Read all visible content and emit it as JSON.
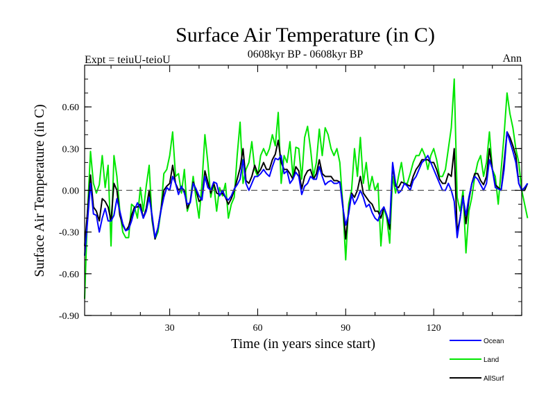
{
  "chart_data": {
    "type": "line",
    "title": "Surface Air Temperature (in C)",
    "subtitle": "0608kyr BP - 0608kyr BP",
    "left_label": "Expt = teiuU-teioU",
    "right_label": "Ann",
    "xlabel": "Time (in years since start)",
    "ylabel": "Surface Air Temperature (in C)",
    "xlim": [
      1,
      150
    ],
    "ylim": [
      -0.9,
      0.9
    ],
    "x_ticks": [
      30,
      60,
      90,
      120
    ],
    "y_ticks": [
      -0.9,
      -0.6,
      -0.3,
      0.0,
      0.3,
      0.6
    ],
    "y_tick_labels": [
      "-0.90",
      "-0.60",
      "-0.30",
      "0.00",
      "0.30",
      "0.60"
    ],
    "zero_line": 0.0,
    "legend_position": "bottom-right",
    "series": [
      {
        "name": "Ocean",
        "color": "#0000ff",
        "values": [
          -0.47,
          -0.22,
          0.05,
          -0.17,
          -0.18,
          -0.3,
          -0.2,
          -0.13,
          -0.22,
          -0.22,
          -0.18,
          -0.06,
          -0.15,
          -0.24,
          -0.29,
          -0.28,
          -0.22,
          -0.14,
          -0.09,
          -0.13,
          -0.2,
          -0.15,
          -0.05,
          -0.18,
          -0.34,
          -0.27,
          -0.15,
          -0.05,
          0.02,
          0.0,
          0.1,
          0.05,
          -0.03,
          0.03,
          -0.02,
          -0.1,
          -0.09,
          0.05,
          0.01,
          -0.04,
          -0.07,
          0.1,
          0.02,
          0.0,
          0.06,
          0.05,
          -0.04,
          0.0,
          -0.05,
          -0.07,
          -0.04,
          0.01,
          0.04,
          0.08,
          0.22,
          0.05,
          0.0,
          0.05,
          0.1,
          0.1,
          0.12,
          0.15,
          0.12,
          0.1,
          0.17,
          0.23,
          0.22,
          0.25,
          0.12,
          0.14,
          0.05,
          0.08,
          0.13,
          0.1,
          -0.03,
          0.03,
          0.05,
          0.1,
          0.08,
          0.08,
          0.17,
          0.1,
          0.04,
          0.06,
          0.07,
          0.05,
          0.05,
          0.06,
          -0.12,
          -0.25,
          -0.17,
          -0.03,
          -0.1,
          -0.06,
          0.0,
          -0.05,
          -0.12,
          -0.1,
          -0.16,
          -0.2,
          -0.22,
          -0.15,
          -0.12,
          -0.18,
          -0.24,
          0.2,
          0.05,
          -0.02,
          0.0,
          0.05,
          0.03,
          0.0,
          0.07,
          0.1,
          0.15,
          0.2,
          0.22,
          0.25,
          0.2,
          0.15,
          0.1,
          0.05,
          0.0,
          0.0,
          0.05,
          0.0,
          -0.08,
          -0.34,
          -0.2,
          -0.05,
          -0.18,
          -0.05,
          0.05,
          0.1,
          0.08,
          0.04,
          0.0,
          0.05,
          0.22,
          0.15,
          0.02,
          0.01,
          0.0,
          0.15,
          0.42,
          0.35,
          0.28,
          0.2,
          0.05,
          0.0,
          0.02,
          0.05
        ]
      },
      {
        "name": "Land",
        "color": "#00e600",
        "values": [
          -0.78,
          -0.15,
          0.28,
          0.05,
          -0.02,
          0.04,
          0.25,
          0.02,
          0.18,
          -0.4,
          0.25,
          0.1,
          -0.15,
          -0.3,
          -0.34,
          -0.34,
          -0.1,
          -0.12,
          -0.2,
          0.02,
          -0.15,
          0.03,
          0.18,
          -0.22,
          -0.35,
          -0.3,
          -0.15,
          0.12,
          0.15,
          0.25,
          0.42,
          0.1,
          0.12,
          -0.02,
          0.15,
          -0.15,
          -0.08,
          0.1,
          -0.06,
          -0.2,
          0.05,
          0.4,
          0.2,
          -0.05,
          0.05,
          -0.15,
          0.02,
          -0.04,
          0.05,
          -0.2,
          -0.1,
          -0.05,
          0.25,
          0.49,
          0.05,
          0.15,
          0.2,
          0.35,
          0.15,
          0.1,
          0.25,
          0.3,
          0.25,
          0.3,
          0.4,
          0.32,
          0.56,
          0.05,
          0.25,
          0.2,
          0.35,
          0.1,
          0.31,
          0.3,
          0.08,
          0.38,
          0.46,
          0.3,
          0.1,
          0.2,
          0.44,
          0.25,
          0.45,
          0.4,
          0.3,
          0.25,
          0.3,
          0.2,
          -0.1,
          -0.5,
          -0.1,
          0.0,
          0.3,
          0.1,
          0.38,
          0.05,
          0.2,
          0.0,
          0.1,
          0.0,
          0.05,
          -0.4,
          -0.12,
          -0.2,
          -0.38,
          0.1,
          -0.02,
          0.1,
          0.2,
          0.05,
          0.05,
          0.12,
          0.2,
          0.25,
          0.25,
          0.3,
          0.25,
          0.15,
          0.25,
          0.3,
          0.22,
          0.1,
          0.1,
          0.15,
          0.3,
          0.45,
          0.8,
          -0.05,
          -0.15,
          0.0,
          -0.45,
          -0.15,
          -0.05,
          0.1,
          0.2,
          0.25,
          0.1,
          0.2,
          0.42,
          0.15,
          0.1,
          -0.1,
          0.15,
          0.4,
          0.7,
          0.55,
          0.45,
          0.3,
          0.2,
          0.0,
          -0.1,
          -0.2
        ]
      },
      {
        "name": "AllSurf",
        "color": "#000000",
        "values": [
          -0.4,
          -0.15,
          0.11,
          -0.12,
          -0.15,
          -0.22,
          -0.06,
          -0.08,
          -0.12,
          -0.22,
          0.05,
          0.0,
          -0.18,
          -0.25,
          -0.29,
          -0.26,
          -0.18,
          -0.12,
          -0.12,
          -0.1,
          -0.2,
          -0.13,
          0.0,
          -0.2,
          -0.35,
          -0.27,
          -0.14,
          0.0,
          0.03,
          0.05,
          0.18,
          0.05,
          0.0,
          0.02,
          0.0,
          -0.13,
          -0.08,
          0.06,
          0.0,
          -0.08,
          -0.06,
          0.14,
          0.06,
          -0.02,
          0.05,
          -0.02,
          -0.03,
          -0.02,
          -0.05,
          -0.1,
          -0.06,
          0.0,
          0.08,
          0.16,
          0.3,
          0.07,
          0.05,
          0.1,
          0.18,
          0.12,
          0.15,
          0.2,
          0.15,
          0.15,
          0.22,
          0.26,
          0.36,
          0.2,
          0.15,
          0.15,
          0.12,
          0.08,
          0.17,
          0.14,
          0.01,
          0.1,
          0.14,
          0.15,
          0.08,
          0.12,
          0.22,
          0.12,
          0.1,
          0.1,
          0.1,
          0.07,
          0.07,
          0.06,
          -0.1,
          -0.35,
          -0.15,
          -0.02,
          -0.05,
          0.0,
          0.1,
          -0.02,
          -0.05,
          -0.08,
          -0.1,
          -0.15,
          -0.15,
          -0.2,
          -0.12,
          -0.18,
          -0.28,
          0.18,
          0.03,
          0.02,
          0.06,
          0.05,
          0.04,
          0.03,
          0.1,
          0.15,
          0.18,
          0.22,
          0.22,
          0.22,
          0.2,
          0.2,
          0.15,
          0.08,
          0.05,
          0.05,
          0.12,
          0.1,
          0.3,
          -0.3,
          -0.2,
          -0.04,
          -0.24,
          -0.07,
          0.05,
          0.12,
          0.12,
          0.07,
          0.04,
          0.1,
          0.3,
          0.15,
          0.04,
          0.02,
          0.0,
          0.2,
          0.42,
          0.38,
          0.32,
          0.25,
          0.05,
          0.0,
          0.0,
          0.05
        ]
      }
    ]
  }
}
